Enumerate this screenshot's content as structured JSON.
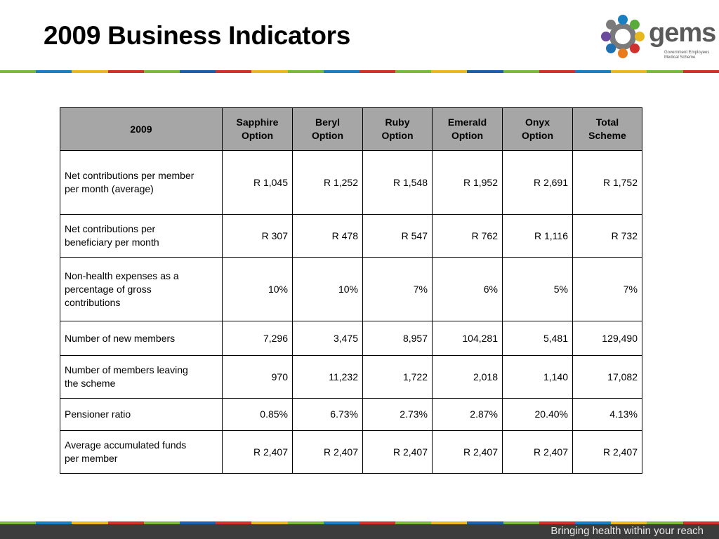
{
  "slide": {
    "title": "2009 Business Indicators",
    "tagline": "Bringing health within your reach"
  },
  "logo": {
    "word": "gems",
    "subtitle": [
      "Government Employees",
      "Medical Scheme"
    ],
    "colors": [
      "#1a7fc1",
      "#5aaa3c",
      "#e8b820",
      "#d0312d",
      "#e97a1e",
      "#1f6fb3",
      "#6a4a9c",
      "#7a7a7a"
    ]
  },
  "stripe_colors": [
    "#7aba3a",
    "#1a7fc1",
    "#e8b820",
    "#d0312d",
    "#7aba3a",
    "#1f5ea8",
    "#d0312d",
    "#e8b820",
    "#7aba3a",
    "#1a7fc1",
    "#d0312d",
    "#7aba3a",
    "#e8b820",
    "#1f5ea8",
    "#7aba3a",
    "#d0312d",
    "#1a7fc1",
    "#e8b820",
    "#7aba3a",
    "#d0312d"
  ],
  "table": {
    "headers": [
      [
        "2009"
      ],
      [
        "Sapphire",
        "Option"
      ],
      [
        "Beryl",
        "Option"
      ],
      [
        "Ruby",
        "Option"
      ],
      [
        "Emerald",
        "Option"
      ],
      [
        "Onyx",
        "Option"
      ],
      [
        "Total",
        "Scheme"
      ]
    ],
    "rows": [
      {
        "label": [
          "Net contributions per member",
          "per month (average)"
        ],
        "values": [
          "R 1,045",
          "R 1,252",
          "R 1,548",
          "R 1,952",
          "R 2,691",
          "R 1,752"
        ]
      },
      {
        "label": [
          "Net contributions per",
          "beneficiary per month"
        ],
        "values": [
          "R 307",
          "R 478",
          "R 547",
          "R 762",
          "R 1,116",
          "R 732"
        ]
      },
      {
        "label": [
          "Non-health expenses as a",
          "percentage of gross",
          "contributions"
        ],
        "values": [
          "10%",
          "10%",
          "7%",
          "6%",
          "5%",
          "7%"
        ]
      },
      {
        "label": [
          "Number of new  members"
        ],
        "values": [
          "7,296",
          "3,475",
          "8,957",
          "104,281",
          "5,481",
          "129,490"
        ]
      },
      {
        "label": [
          "Number of members leaving",
          "the scheme"
        ],
        "values": [
          "970",
          "11,232",
          "1,722",
          "2,018",
          "1,140",
          "17,082"
        ]
      },
      {
        "label": [
          "Pensioner ratio"
        ],
        "values": [
          "0.85%",
          "6.73%",
          "2.73%",
          "2.87%",
          "20.40%",
          "4.13%"
        ]
      },
      {
        "label": [
          "Average accumulated funds",
          "per member"
        ],
        "values": [
          "R 2,407",
          "R 2,407",
          "R 2,407",
          "R 2,407",
          "R 2,407",
          "R 2,407"
        ]
      }
    ]
  }
}
